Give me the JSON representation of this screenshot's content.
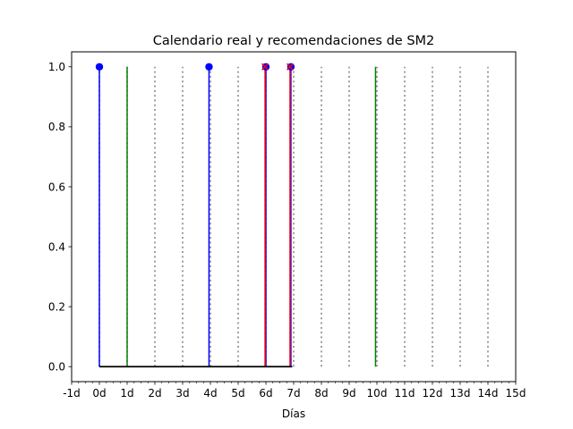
{
  "chart_data": {
    "type": "stem",
    "title": "Calendario real y recomendaciones de SM2",
    "xlabel": "Días",
    "ylabel": "",
    "xlim": [
      -1,
      15
    ],
    "ylim": [
      -0.05,
      1.05
    ],
    "x_tick_values": [
      -1,
      0,
      1,
      2,
      3,
      4,
      5,
      6,
      7,
      8,
      9,
      10,
      11,
      12,
      13,
      14,
      15
    ],
    "x_tick_labels": [
      "-1d",
      "0d",
      "1d",
      "2d",
      "3d",
      "4d",
      "5d",
      "6d",
      "7d",
      "8d",
      "9d",
      "10d",
      "11d",
      "12d",
      "13d",
      "14d",
      "15d"
    ],
    "x_minor_step": 0.25,
    "y_tick_values": [
      0.0,
      0.2,
      0.4,
      0.6,
      0.8,
      1.0
    ],
    "y_tick_labels": [
      "0.0",
      "0.2",
      "0.4",
      "0.6",
      "0.8",
      "1.0"
    ],
    "grid": false,
    "series": [
      {
        "color": "#808080",
        "style": "dotted",
        "marker": "none",
        "x": [
          0,
          1,
          2,
          3,
          4,
          5,
          6,
          7,
          8,
          9,
          10,
          11,
          12,
          13,
          14
        ],
        "y": [
          1,
          1,
          1,
          1,
          1,
          1,
          1,
          1,
          1,
          1,
          1,
          1,
          1,
          1,
          1
        ]
      },
      {
        "color": "#008000",
        "style": "solid",
        "marker": "none",
        "x": [
          1,
          9.95
        ],
        "y": [
          1,
          1
        ]
      },
      {
        "color": "#0000ff",
        "style": "solid",
        "marker": "circle",
        "x": [
          0,
          3.95,
          6,
          6.9
        ],
        "y": [
          1,
          1,
          1,
          1
        ]
      },
      {
        "color": "#ff0000",
        "style": "solid",
        "marker": "x",
        "x": [
          5.97,
          6.87
        ],
        "y": [
          1,
          1
        ]
      }
    ],
    "baseline": {
      "color": "#000000",
      "from": 0,
      "to": 6.95,
      "y": 0
    }
  }
}
